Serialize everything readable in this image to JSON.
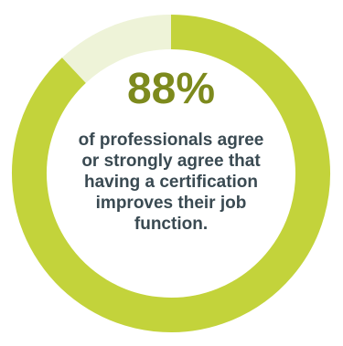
{
  "chart_data": {
    "type": "pie",
    "variant": "donut",
    "values": [
      88,
      12
    ],
    "center_value": "88%",
    "caption": "of professionals agree or strongly agree that having a certification improves their job function.",
    "colors": {
      "filled": "#c3d33b",
      "remainder": "#eef3d8",
      "value_text": "#7d8a1d",
      "caption_text": "#3a4a52"
    }
  }
}
